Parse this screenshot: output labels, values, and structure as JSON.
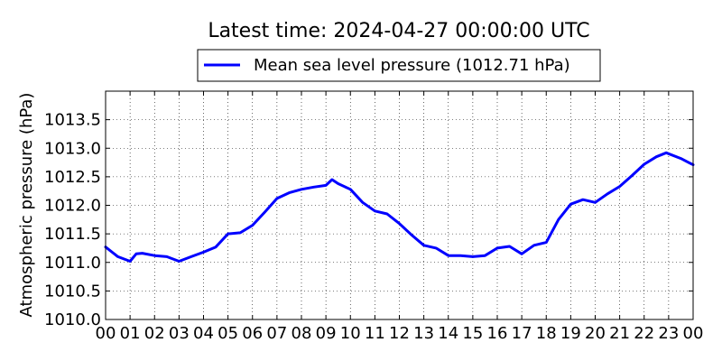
{
  "chart_data": {
    "type": "line",
    "title": "Latest time: 2024-04-27 00:00:00 UTC",
    "ylabel": "Atmospheric pressure (hPa)",
    "xlabel": "",
    "xlim": [
      0,
      24
    ],
    "ylim": [
      1010.0,
      1014.0
    ],
    "grid": true,
    "legend_position": "top-center",
    "x_ticks": [
      "00",
      "01",
      "02",
      "03",
      "04",
      "05",
      "06",
      "07",
      "08",
      "09",
      "10",
      "11",
      "12",
      "13",
      "14",
      "15",
      "16",
      "17",
      "18",
      "19",
      "20",
      "21",
      "22",
      "23",
      "00"
    ],
    "y_ticks": [
      "1010.0",
      "1010.5",
      "1011.0",
      "1011.5",
      "1012.0",
      "1012.5",
      "1013.0",
      "1013.5"
    ],
    "series": [
      {
        "name": "Mean sea level pressure (1012.71 hPa)",
        "color": "#0000ff",
        "x": [
          0,
          0.5,
          1,
          1.25,
          1.5,
          2,
          2.5,
          3,
          3.5,
          4,
          4.5,
          5,
          5.5,
          6,
          6.5,
          7,
          7.5,
          8,
          8.5,
          9,
          9.25,
          9.5,
          10,
          10.5,
          11,
          11.5,
          12,
          12.5,
          13,
          13.5,
          14,
          14.5,
          15,
          15.5,
          16,
          16.5,
          17,
          17.5,
          18,
          18.5,
          19,
          19.5,
          20,
          20.5,
          21,
          21.5,
          22,
          22.5,
          22.9,
          23.5,
          24
        ],
        "values": [
          1011.27,
          1011.1,
          1011.02,
          1011.15,
          1011.16,
          1011.12,
          1011.1,
          1011.02,
          1011.1,
          1011.18,
          1011.27,
          1011.5,
          1011.52,
          1011.65,
          1011.88,
          1012.12,
          1012.22,
          1012.28,
          1012.32,
          1012.35,
          1012.45,
          1012.38,
          1012.28,
          1012.05,
          1011.9,
          1011.85,
          1011.68,
          1011.48,
          1011.3,
          1011.25,
          1011.12,
          1011.12,
          1011.1,
          1011.12,
          1011.25,
          1011.28,
          1011.15,
          1011.3,
          1011.35,
          1011.75,
          1012.02,
          1012.1,
          1012.05,
          1012.2,
          1012.33,
          1012.52,
          1012.72,
          1012.85,
          1012.92,
          1012.82,
          1012.71
        ]
      }
    ]
  }
}
